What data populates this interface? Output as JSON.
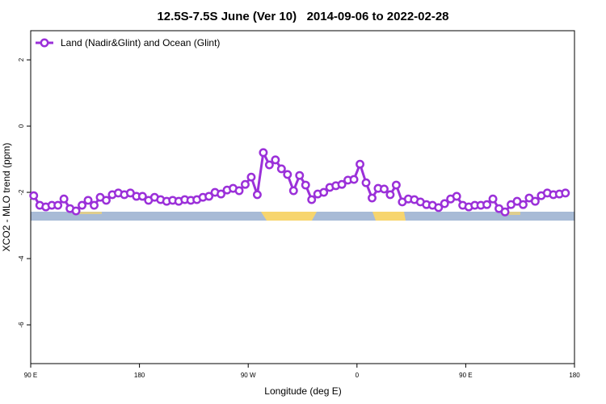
{
  "chart_data": {
    "type": "line",
    "title": "12.5S-7.5S June (Ver 10)   2014-09-06 to 2022-02-28",
    "x_label": "Longitude (deg E)",
    "y_label": "XCO2 - MLO trend (ppm)",
    "xlim": [
      90,
      540
    ],
    "xticks": [
      {
        "value": 90,
        "label": "90 E"
      },
      {
        "value": 180,
        "label": "180"
      },
      {
        "value": 270,
        "label": "90 W"
      },
      {
        "value": 360,
        "label": "0"
      },
      {
        "value": 450,
        "label": "90 E"
      },
      {
        "value": 540,
        "label": "180"
      }
    ],
    "ylim": [
      -7.17,
      2.88
    ],
    "yticks": [
      2,
      0,
      -2,
      -4,
      -6
    ],
    "legend": "topleft",
    "x": [
      92.5,
      97.5,
      102.5,
      107.5,
      112.5,
      117.5,
      122.5,
      127.5,
      132.5,
      137.5,
      142.5,
      147.5,
      152.5,
      157.5,
      162.5,
      167.5,
      172.5,
      177.5,
      182.5,
      187.5,
      192.5,
      197.5,
      202.5,
      207.5,
      212.5,
      217.5,
      222.5,
      227.5,
      232.5,
      237.5,
      242.5,
      247.5,
      252.5,
      257.5,
      262.5,
      267.5,
      272.5,
      277.5,
      282.5,
      287.5,
      292.5,
      297.5,
      302.5,
      307.5,
      312.5,
      317.5,
      322.5,
      327.5,
      332.5,
      337.5,
      342.5,
      347.5,
      352.5,
      357.5,
      362.5,
      367.5,
      372.5,
      377.5,
      382.5,
      387.5,
      392.5,
      397.5,
      402.5,
      407.5,
      412.5,
      417.5,
      422.5,
      427.5,
      432.5,
      437.5,
      442.5,
      447.5,
      452.5,
      457.5,
      462.5,
      467.5,
      472.5,
      477.5,
      482.5,
      487.5,
      492.5,
      497.5,
      502.5,
      507.5,
      512.5,
      517.5,
      522.5,
      527.5,
      532.5
    ],
    "series": [
      {
        "name": "Land (Nadir&Glint) and Ocean (Glint)",
        "color": "#9b30d9",
        "values": [
          -2.1,
          -2.39,
          -2.44,
          -2.39,
          -2.39,
          -2.2,
          -2.49,
          -2.56,
          -2.39,
          -2.24,
          -2.39,
          -2.15,
          -2.24,
          -2.07,
          -2.02,
          -2.07,
          -2.02,
          -2.12,
          -2.12,
          -2.24,
          -2.15,
          -2.22,
          -2.27,
          -2.24,
          -2.27,
          -2.22,
          -2.24,
          -2.22,
          -2.15,
          -2.12,
          -2.0,
          -2.05,
          -1.93,
          -1.88,
          -1.95,
          -1.76,
          -1.54,
          -2.07,
          -0.8,
          -1.17,
          -1.02,
          -1.29,
          -1.46,
          -1.95,
          -1.49,
          -1.78,
          -2.22,
          -2.05,
          -2.0,
          -1.85,
          -1.8,
          -1.76,
          -1.63,
          -1.61,
          -1.15,
          -1.71,
          -2.17,
          -1.88,
          -1.9,
          -2.07,
          -1.78,
          -2.29,
          -2.2,
          -2.22,
          -2.29,
          -2.37,
          -2.39,
          -2.46,
          -2.34,
          -2.2,
          -2.12,
          -2.39,
          -2.44,
          -2.39,
          -2.39,
          -2.37,
          -2.2,
          -2.49,
          -2.59,
          -2.37,
          -2.27,
          -2.37,
          -2.17,
          -2.27,
          -2.1,
          -2.02,
          -2.07,
          -2.05,
          -2.02
        ]
      }
    ]
  }
}
